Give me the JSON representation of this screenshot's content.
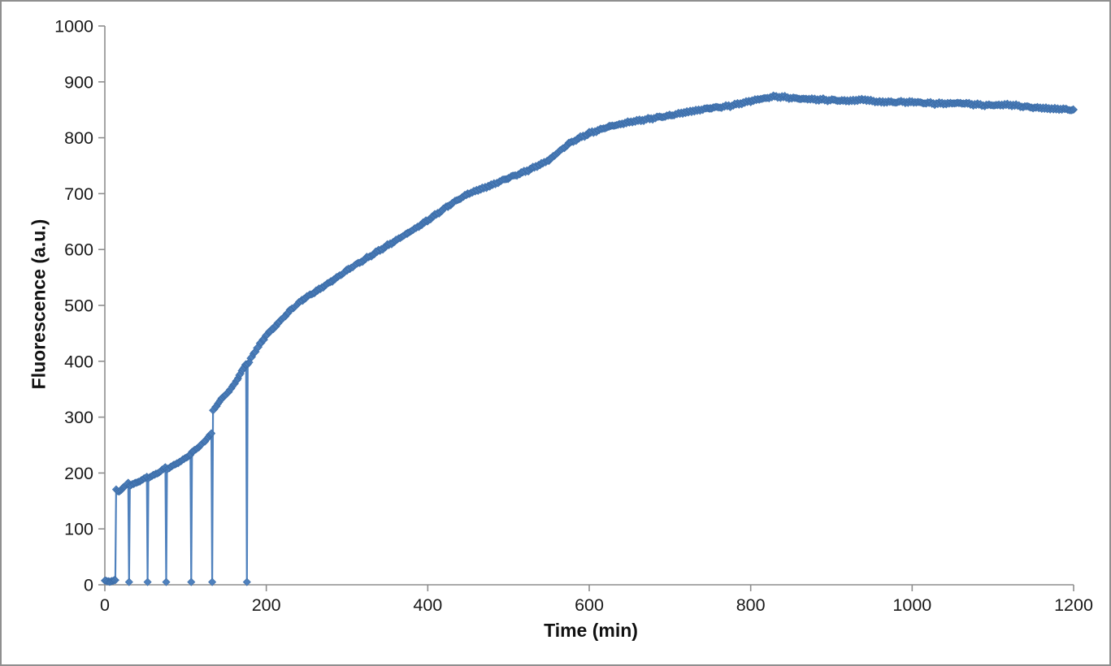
{
  "window": {
    "background": "#ffffff",
    "border_color": "#8f8f8f"
  },
  "chart_data": {
    "type": "scatter-line",
    "title": "",
    "xlabel": "Time (min)",
    "ylabel": "Fluorescence (a.u.)",
    "xlim": [
      0,
      1200
    ],
    "ylim": [
      0,
      1000
    ],
    "x_ticks": [
      0,
      200,
      400,
      600,
      800,
      1000,
      1200
    ],
    "y_ticks": [
      0,
      100,
      200,
      300,
      400,
      500,
      600,
      700,
      800,
      900,
      1000
    ],
    "grid": false,
    "legend": null,
    "colors": {
      "series": "#4F81BD",
      "series_edge": "#3C6DA8",
      "axis": "#8e8e8e",
      "tick_label": "#1a1a1a"
    },
    "marker": "diamond",
    "marker_size": 9.2,
    "line_width": 2.2,
    "series": [
      {
        "name": "Fluorescence",
        "color": "#4F81BD",
        "segments": [
          {
            "name": "baseline",
            "step": 1.4,
            "noise": 1.0,
            "anchors": [
              [
                0,
                7
              ],
              [
                6,
                6
              ],
              [
                13,
                8
              ]
            ]
          },
          {
            "name": "cycle1",
            "step": 1.5,
            "noise": 1.0,
            "anchors": [
              [
                14,
                171
              ],
              [
                16,
                167
              ],
              [
                19,
                168
              ],
              [
                23,
                174
              ],
              [
                26,
                178
              ],
              [
                29,
                183
              ]
            ]
          },
          {
            "name": "drop1",
            "step": 1,
            "noise": 0,
            "anchors": [
              [
                30,
                5
              ]
            ]
          },
          {
            "name": "cycle2",
            "step": 1.5,
            "noise": 1.0,
            "anchors": [
              [
                31,
                178
              ],
              [
                36,
                181
              ],
              [
                44,
                186
              ],
              [
                52,
                193
              ]
            ]
          },
          {
            "name": "drop2",
            "step": 1,
            "noise": 0,
            "anchors": [
              [
                53,
                5
              ]
            ]
          },
          {
            "name": "cycle3",
            "step": 1.5,
            "noise": 1.0,
            "anchors": [
              [
                54,
                191
              ],
              [
                60,
                196
              ],
              [
                68,
                202
              ],
              [
                75,
                210
              ]
            ]
          },
          {
            "name": "drop3",
            "step": 1,
            "noise": 0,
            "anchors": [
              [
                76,
                5
              ]
            ]
          },
          {
            "name": "cycle4",
            "step": 1.5,
            "noise": 1.1,
            "anchors": [
              [
                77,
                207
              ],
              [
                85,
                214
              ],
              [
                95,
                222
              ],
              [
                101,
                228
              ],
              [
                106,
                233
              ]
            ]
          },
          {
            "name": "drop4",
            "step": 1,
            "noise": 0,
            "anchors": [
              [
                107,
                5
              ]
            ]
          },
          {
            "name": "cycle5",
            "step": 1.5,
            "noise": 1.2,
            "anchors": [
              [
                108,
                237
              ],
              [
                115,
                245
              ],
              [
                124,
                257
              ],
              [
                132,
                271
              ]
            ]
          },
          {
            "name": "drop5",
            "step": 1,
            "noise": 0,
            "anchors": [
              [
                133,
                5
              ]
            ]
          },
          {
            "name": "cycle6",
            "step": 1.5,
            "noise": 1.5,
            "anchors": [
              [
                134,
                312
              ],
              [
                143,
                330
              ],
              [
                155,
                348
              ],
              [
                165,
                370
              ],
              [
                175,
                396
              ]
            ]
          },
          {
            "name": "drop6",
            "step": 1,
            "noise": 0,
            "anchors": [
              [
                176,
                5
              ]
            ]
          },
          {
            "name": "growth",
            "step": 1.75,
            "noise": 2.6,
            "anchors": [
              [
                177,
                394
              ],
              [
                185,
                415
              ],
              [
                200,
                447
              ],
              [
                215,
                468
              ],
              [
                230,
                492
              ],
              [
                245,
                510
              ],
              [
                260,
                524
              ],
              [
                280,
                542
              ],
              [
                300,
                563
              ],
              [
                325,
                585
              ],
              [
                350,
                607
              ],
              [
                375,
                629
              ],
              [
                400,
                652
              ],
              [
                425,
                678
              ],
              [
                450,
                700
              ],
              [
                475,
                713
              ],
              [
                500,
                728
              ],
              [
                525,
                742
              ],
              [
                550,
                760
              ],
              [
                575,
                790
              ],
              [
                600,
                808
              ],
              [
                625,
                820
              ],
              [
                650,
                828
              ],
              [
                675,
                834
              ],
              [
                700,
                840
              ],
              [
                725,
                847
              ],
              [
                750,
                853
              ],
              [
                775,
                857
              ],
              [
                800,
                866
              ],
              [
                830,
                874
              ],
              [
                860,
                870
              ],
              [
                890,
                868
              ],
              [
                920,
                866
              ],
              [
                940,
                868
              ],
              [
                960,
                864
              ],
              [
                1000,
                864
              ],
              [
                1030,
                861
              ],
              [
                1060,
                862
              ],
              [
                1090,
                858
              ],
              [
                1120,
                859
              ],
              [
                1150,
                854
              ],
              [
                1175,
                852
              ],
              [
                1200,
                850
              ]
            ]
          }
        ]
      }
    ]
  }
}
